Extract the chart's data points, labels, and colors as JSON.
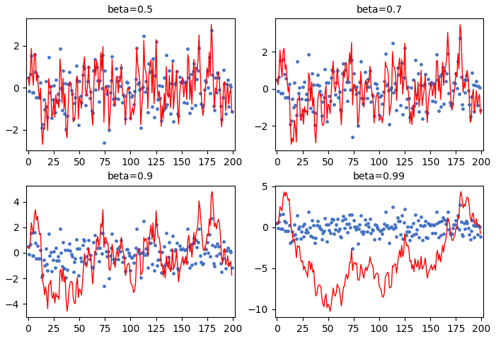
{
  "betas": [
    0.5,
    0.7,
    0.9,
    0.99
  ],
  "n_points": 200,
  "seed": 42,
  "scatter_color": "#4472c4",
  "line_color": "red",
  "scatter_size": 6,
  "line_width": 1.0,
  "titles": [
    "beta=0.5",
    "beta=0.7",
    "beta=0.9",
    "beta=0.99"
  ],
  "xticks": [
    0,
    25,
    50,
    75,
    100,
    125,
    150,
    175,
    200
  ],
  "figsize": [
    7.01,
    4.8
  ],
  "dpi": 100,
  "background_color": "#ffffff"
}
